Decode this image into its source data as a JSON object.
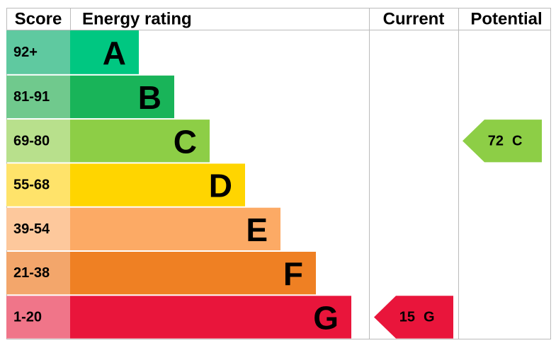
{
  "headers": {
    "score": "Score",
    "rating": "Energy rating",
    "current": "Current",
    "potential": "Potential"
  },
  "bands": [
    {
      "score": "92+",
      "letter": "A",
      "color": "#00c781",
      "score_color": "#5fc9a0"
    },
    {
      "score": "81-91",
      "letter": "B",
      "color": "#19b459",
      "score_color": "#70c98d"
    },
    {
      "score": "69-80",
      "letter": "C",
      "color": "#8dce46",
      "score_color": "#b8e08c"
    },
    {
      "score": "55-68",
      "letter": "D",
      "color": "#ffd500",
      "score_color": "#ffe36a"
    },
    {
      "score": "39-54",
      "letter": "E",
      "color": "#fcaa65",
      "score_color": "#fdc89c"
    },
    {
      "score": "21-38",
      "letter": "F",
      "color": "#ef8023",
      "score_color": "#f3a66b"
    },
    {
      "score": "1-20",
      "letter": "G",
      "color": "#e9153b",
      "score_color": "#f07589"
    }
  ],
  "current": {
    "value": 15,
    "letter": "G",
    "color": "#e9153b"
  },
  "potential": {
    "value": 72,
    "letter": "C",
    "color": "#8dce46"
  }
}
